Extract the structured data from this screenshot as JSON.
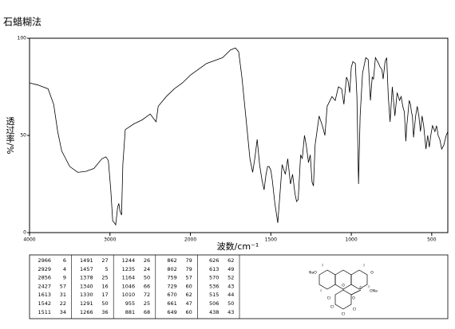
{
  "header": {
    "title": "石蜡糊法"
  },
  "chart_data": {
    "type": "line",
    "x_label": "波数/cm⁻¹",
    "y_label": "透过率/%",
    "xlim": [
      4000,
      400
    ],
    "ylim": [
      0,
      100
    ],
    "xticks": [
      4000,
      3000,
      2000,
      1500,
      1000,
      500
    ],
    "yticks": [
      0,
      50,
      100
    ],
    "x_scale_change": {
      "at": 2000,
      "factor": 2
    },
    "color": "#000000",
    "x": [
      4000,
      3900,
      3770,
      3700,
      3650,
      3600,
      3500,
      3400,
      3300,
      3200,
      3100,
      3050,
      3020,
      2990,
      2966,
      2945,
      2929,
      2905,
      2890,
      2875,
      2856,
      2840,
      2810,
      2700,
      2600,
      2500,
      2427,
      2400,
      2300,
      2200,
      2100,
      2000,
      1900,
      1800,
      1750,
      1720,
      1700,
      1680,
      1650,
      1630,
      1613,
      1600,
      1585,
      1570,
      1555,
      1542,
      1530,
      1520,
      1511,
      1500,
      1491,
      1475,
      1457,
      1445,
      1430,
      1410,
      1395,
      1378,
      1365,
      1350,
      1340,
      1330,
      1315,
      1305,
      1291,
      1280,
      1266,
      1255,
      1244,
      1235,
      1225,
      1200,
      1180,
      1164,
      1150,
      1120,
      1100,
      1080,
      1060,
      1046,
      1030,
      1020,
      1010,
      1000,
      990,
      975,
      965,
      955,
      945,
      930,
      910,
      895,
      881,
      870,
      862,
      850,
      830,
      820,
      810,
      802,
      790,
      780,
      770,
      759,
      745,
      729,
      715,
      700,
      690,
      680,
      670,
      661,
      655,
      649,
      640,
      632,
      626,
      620,
      613,
      600,
      590,
      580,
      570,
      560,
      550,
      536,
      525,
      515,
      506,
      495,
      480,
      470,
      460,
      450,
      438,
      425,
      410,
      400
    ],
    "values": [
      77,
      76,
      74,
      66,
      52,
      42,
      34,
      31,
      31.5,
      33,
      38,
      39,
      37,
      22,
      6,
      5,
      4,
      13,
      15,
      11,
      9,
      35,
      53,
      56,
      58,
      61,
      57,
      65,
      70,
      74,
      77,
      81,
      87,
      90,
      94,
      95,
      93,
      80,
      55,
      38,
      31,
      38,
      48,
      35,
      27,
      22,
      30,
      34,
      34,
      32,
      27,
      15,
      5,
      18,
      35,
      30,
      38,
      25,
      30,
      20,
      16,
      17,
      40,
      38,
      50,
      45,
      36,
      40,
      26,
      24,
      45,
      60,
      55,
      50,
      65,
      70,
      68,
      75,
      74,
      66,
      80,
      78,
      72,
      85,
      88,
      87,
      70,
      25,
      60,
      82,
      90,
      89,
      68,
      80,
      79,
      90,
      87,
      85,
      84,
      79,
      88,
      90,
      70,
      57,
      75,
      60,
      72,
      68,
      70,
      65,
      62,
      47,
      55,
      60,
      68,
      66,
      62,
      60,
      49,
      60,
      65,
      60,
      52,
      60,
      55,
      43,
      50,
      44,
      50,
      55,
      52,
      55,
      50,
      48,
      43,
      45,
      50,
      52
    ]
  },
  "peak_table": [
    [
      [
        "2966",
        "6"
      ],
      [
        "2929",
        "4"
      ],
      [
        "2856",
        "9"
      ],
      [
        "2427",
        "57"
      ],
      [
        "1613",
        "31"
      ],
      [
        "1542",
        "22"
      ],
      [
        "1511",
        "34"
      ]
    ],
    [
      [
        "1491",
        "27"
      ],
      [
        "1457",
        "5"
      ],
      [
        "1378",
        "25"
      ],
      [
        "1340",
        "16"
      ],
      [
        "1330",
        "17"
      ],
      [
        "1291",
        "50"
      ],
      [
        "1266",
        "36"
      ]
    ],
    [
      [
        "1244",
        "26"
      ],
      [
        "1235",
        "24"
      ],
      [
        "1164",
        "50"
      ],
      [
        "1046",
        "66"
      ],
      [
        "1010",
        "72"
      ],
      [
        "955",
        "25"
      ],
      [
        "881",
        "68"
      ]
    ],
    [
      [
        "862",
        "79"
      ],
      [
        "802",
        "79"
      ],
      [
        "759",
        "57"
      ],
      [
        "729",
        "60"
      ],
      [
        "670",
        "62"
      ],
      [
        "661",
        "47"
      ],
      [
        "649",
        "60"
      ]
    ],
    [
      [
        "626",
        "62"
      ],
      [
        "613",
        "49"
      ],
      [
        "570",
        "52"
      ],
      [
        "536",
        "43"
      ],
      [
        "515",
        "44"
      ],
      [
        "506",
        "50"
      ],
      [
        "438",
        "43"
      ]
    ]
  ],
  "structure": {
    "labels": [
      "NaO",
      "I",
      "O",
      "O",
      "I",
      "I",
      "I",
      "C",
      "ONa",
      "O",
      "Cl",
      "Cl",
      "Cl",
      "Cl"
    ]
  }
}
